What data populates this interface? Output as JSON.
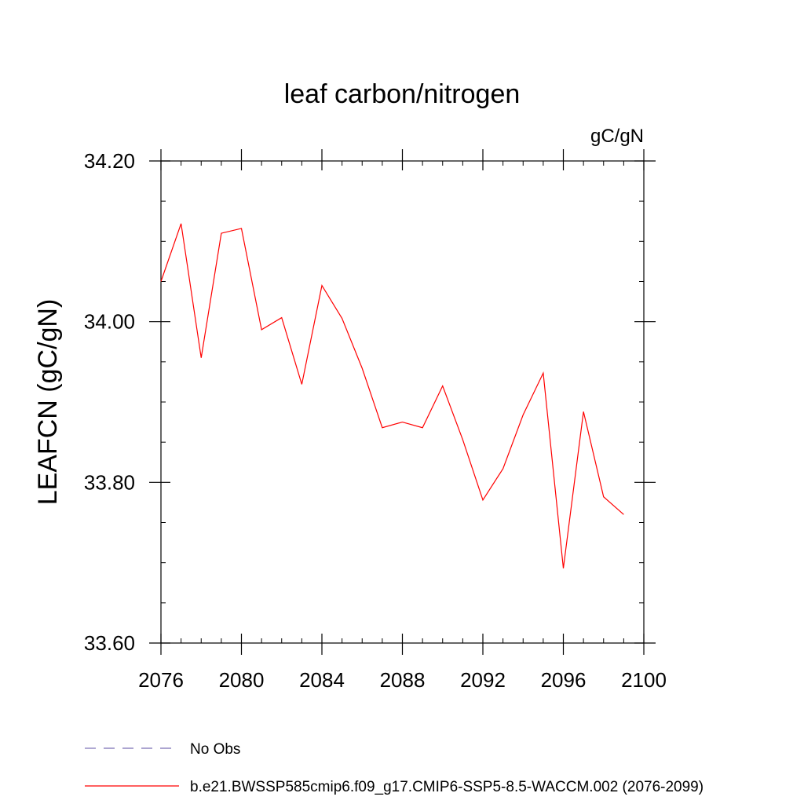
{
  "chart_data": {
    "type": "line",
    "title": "leaf carbon/nitrogen",
    "units_label": "gC/gN",
    "ylabel": "LEAFCN  (gC/gN)",
    "xlabel": "",
    "xlim": [
      2076,
      2100
    ],
    "ylim": [
      33.6,
      34.2
    ],
    "x_ticks": [
      2076,
      2080,
      2084,
      2088,
      2092,
      2096,
      2100
    ],
    "x_tick_labels": [
      "2076",
      "2080",
      "2084",
      "2088",
      "2092",
      "2096",
      "2100"
    ],
    "x_minor_step": 1,
    "y_ticks": [
      33.6,
      33.8,
      34.0,
      34.2
    ],
    "y_tick_labels": [
      "33.60",
      "33.80",
      "34.00",
      "34.20"
    ],
    "y_minor_step": 0.05,
    "grid": false,
    "legend_position": "bottom-left",
    "series": [
      {
        "name": "b.e21.BWSSP585cmip6.f09_g17.CMIP6-SSP5-8.5-WACCM.002 (2076-2099)",
        "color": "#ff0000",
        "x": [
          2076,
          2077,
          2078,
          2079,
          2080,
          2081,
          2082,
          2083,
          2084,
          2085,
          2086,
          2087,
          2088,
          2089,
          2090,
          2091,
          2092,
          2093,
          2094,
          2095,
          2096,
          2097,
          2098,
          2099
        ],
        "values": [
          34.05,
          34.122,
          33.955,
          34.11,
          34.116,
          33.99,
          34.005,
          33.922,
          34.045,
          34.004,
          33.942,
          33.868,
          33.875,
          33.868,
          33.92,
          33.853,
          33.778,
          33.817,
          33.884,
          33.936,
          33.693,
          33.888,
          33.782,
          33.76
        ]
      }
    ],
    "legend": [
      {
        "label": "No Obs",
        "style": "dashed",
        "color": "#7a6fb5"
      },
      {
        "label": "b.e21.BWSSP585cmip6.f09_g17.CMIP6-SSP5-8.5-WACCM.002 (2076-2099)",
        "style": "solid",
        "color": "#ff0000"
      }
    ]
  }
}
